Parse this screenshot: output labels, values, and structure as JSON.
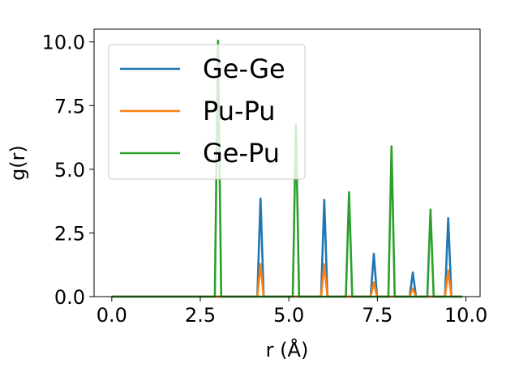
{
  "chart_data": {
    "type": "line",
    "xlabel": "r (Å)",
    "ylabel": "g(r)",
    "xlim": [
      -0.5,
      10.4
    ],
    "ylim": [
      0,
      10.5
    ],
    "xticks": [
      0.0,
      2.5,
      5.0,
      7.5,
      10.0
    ],
    "xtick_labels": [
      "0.0",
      "2.5",
      "5.0",
      "7.5",
      "10.0"
    ],
    "yticks": [
      0.0,
      2.5,
      5.0,
      7.5,
      10.0
    ],
    "ytick_labels": [
      "0.0",
      "2.5",
      "5.0",
      "7.5",
      "10.0"
    ],
    "legend_position": "top-left",
    "grid": false,
    "r_range": [
      0.0,
      9.9
    ],
    "series": [
      {
        "name": "Ge-Ge",
        "color": "#1f77b4",
        "peaks": [
          {
            "r": 4.2,
            "g": 3.85
          },
          {
            "r": 6.0,
            "g": 3.8
          },
          {
            "r": 7.4,
            "g": 1.68
          },
          {
            "r": 8.5,
            "g": 0.95
          },
          {
            "r": 9.5,
            "g": 3.08
          }
        ]
      },
      {
        "name": "Pu-Pu",
        "color": "#ff7f0e",
        "peaks": [
          {
            "r": 4.2,
            "g": 1.28
          },
          {
            "r": 6.0,
            "g": 1.27
          },
          {
            "r": 7.4,
            "g": 0.56
          },
          {
            "r": 8.5,
            "g": 0.32
          },
          {
            "r": 9.5,
            "g": 1.03
          }
        ]
      },
      {
        "name": "Ge-Pu",
        "color": "#2ca02c",
        "peaks": [
          {
            "r": 3.0,
            "g": 10.05
          },
          {
            "r": 5.2,
            "g": 6.78
          },
          {
            "r": 6.7,
            "g": 4.1
          },
          {
            "r": 7.9,
            "g": 5.9
          },
          {
            "r": 9.0,
            "g": 3.42
          }
        ]
      }
    ]
  }
}
